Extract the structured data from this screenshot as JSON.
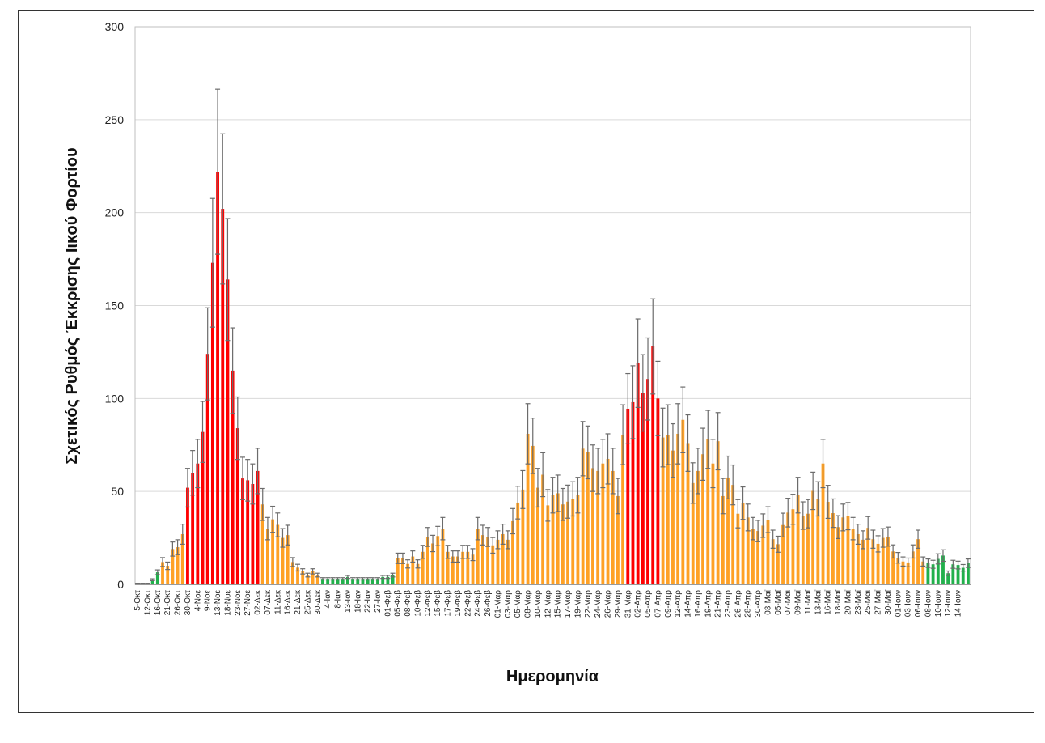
{
  "chart_data": {
    "type": "bar",
    "title": "",
    "xlabel": "Ημερομηνία",
    "ylabel": "Σχετικός Ρυθμός Έκκρισης Ιικού Φορτίου",
    "ylim": [
      0,
      300
    ],
    "yticks": [
      "0",
      "50",
      "100",
      "150",
      "200",
      "250",
      "300"
    ],
    "grid": true,
    "error_relative": 0.2,
    "colors": {
      "low": "#21b04b",
      "medium": "#ffa125",
      "high": "#ff0000",
      "error": "#6b6b6b",
      "grid": "#d9d9d9"
    },
    "segments": [
      {
        "level": "low",
        "count": 5
      },
      {
        "level": "medium",
        "count": 5
      },
      {
        "level": "high",
        "count": 15
      },
      {
        "level": "medium",
        "count": 12
      },
      {
        "level": "low",
        "count": 15
      },
      {
        "level": "medium",
        "count": 46
      },
      {
        "level": "high",
        "count": 7
      },
      {
        "level": "medium",
        "count": 53
      },
      {
        "level": "low",
        "count": 9
      }
    ],
    "values": [
      0.5,
      0.5,
      0.5,
      2.5,
      6.5,
      12,
      10,
      19,
      20,
      27,
      52,
      60,
      65,
      82,
      124,
      173,
      222,
      202,
      164,
      115,
      84,
      57,
      56,
      54,
      61,
      43,
      30,
      35,
      32,
      25,
      26.5,
      12,
      9,
      7,
      5,
      7,
      5,
      3,
      3,
      3,
      3,
      3,
      4,
      3,
      3,
      3,
      3,
      3,
      3,
      4,
      4,
      5,
      14,
      14,
      11,
      15,
      11,
      17.5,
      25.5,
      22,
      26,
      30,
      17.5,
      15,
      15,
      17.5,
      17.5,
      16,
      30,
      26.5,
      25.5,
      21,
      24,
      27,
      24,
      34,
      44,
      51,
      81,
      74.5,
      52,
      59,
      42.5,
      48,
      49,
      43,
      44.5,
      46,
      48,
      73,
      71,
      62.5,
      61,
      65,
      67.5,
      61,
      47.5,
      80.5,
      94.5,
      98,
      119,
      103,
      110.5,
      128,
      100,
      79,
      80.5,
      72,
      81,
      88.5,
      76,
      54.5,
      61,
      70,
      78,
      65,
      77,
      47.5,
      57.5,
      53.5,
      38,
      43.7,
      36,
      30,
      28.7,
      31.6,
      34.8,
      24.3,
      21.6,
      31.9,
      38.6,
      40.4,
      48,
      37,
      38,
      50.3,
      46,
      65,
      44.4,
      38.3,
      30.8,
      36,
      36.7,
      30,
      27,
      24,
      30.4,
      24.3,
      21.8,
      25,
      25.7,
      17.7,
      14.3,
      12.3,
      11.8,
      17.7,
      24.3,
      12.3,
      11.4,
      10.8,
      13.7,
      15.5,
      6,
      10.8,
      10.4,
      8.9,
      11.4
    ],
    "category_labels": [
      "5-Οκτ",
      "12-Οκτ",
      "16-Οκτ",
      "21-Οκτ",
      "26-Οκτ",
      "30-Οκτ",
      "4-Νοε",
      "9-Νοε",
      "13-Νοε",
      "18-Νοε",
      "23-Νοε",
      "27-Νοε",
      "02-Δεκ",
      "07-Δεκ",
      "11-Δεκ",
      "16-Δεκ",
      "21-Δεκ",
      "25-Δεκ",
      "30-Δεκ",
      "4-Ιαν",
      "8-Ιαν",
      "13-Ιαν",
      "18-Ιαν",
      "22-Ιαν",
      "27-Ιαν",
      "01-Φεβ",
      "05-Φεβ",
      "08-Φεβ",
      "10-Φεβ",
      "12-Φεβ",
      "15-Φεβ",
      "17-Φεβ",
      "19-Φεβ",
      "22-Φεβ",
      "24-Φεβ",
      "26-Φεβ",
      "01-Μαρ",
      "03-Μαρ",
      "05-Μαρ",
      "08-Μαρ",
      "10-Μαρ",
      "12-Μαρ",
      "15-Μαρ",
      "17-Μαρ",
      "19-Μαρ",
      "22-Μαρ",
      "24-Μαρ",
      "26-Μαρ",
      "29-Μαρ",
      "31-Μαρ",
      "02-Απρ",
      "05-Απρ",
      "07-Απρ",
      "09-Απρ",
      "12-Απρ",
      "14-Απρ",
      "16-Απρ",
      "19-Απρ",
      "21-Απρ",
      "23-Απρ",
      "26-Απρ",
      "28-Απρ",
      "30-Απρ",
      "03-Μαϊ",
      "05-Μαϊ",
      "07-Μαϊ",
      "09-Μαϊ",
      "11-Μαϊ",
      "13-Μαϊ",
      "16-Μαϊ",
      "18-Μαϊ",
      "20-Μαϊ",
      "23-Μαϊ",
      "25-Μαϊ",
      "27-Μαϊ",
      "30-Μαϊ",
      "01-Ιουν",
      "03-Ιουν",
      "06-Ιουν",
      "08-Ιουν",
      "10-Ιουν",
      "12-Ιουν",
      "14-Ιουν"
    ],
    "label_every": 2
  }
}
